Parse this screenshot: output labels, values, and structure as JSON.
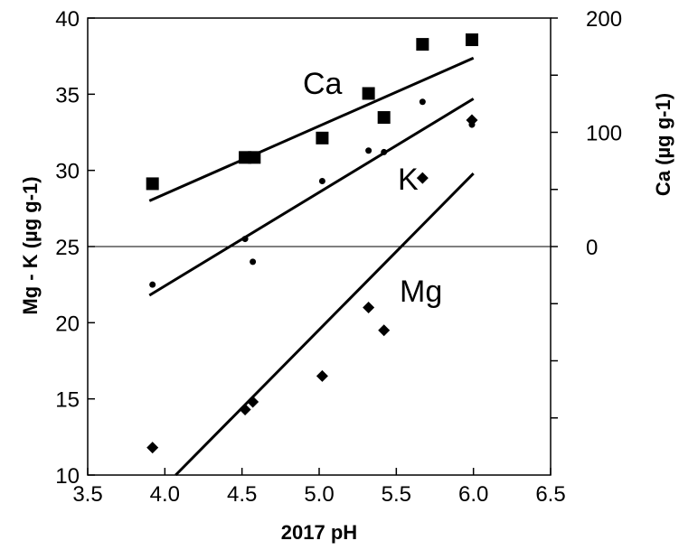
{
  "chart_data": {
    "type": "scatter",
    "title": "",
    "xlabel": "2017 pH",
    "ylabel_left": "Mg - K (µg g-1)",
    "ylabel_right": "Ca (µg g-1)",
    "xlim": [
      3.5,
      6.5
    ],
    "ylim_left": [
      10,
      40
    ],
    "ylim_right": [
      -200,
      200
    ],
    "x_ticks": [
      "3.5",
      "4.0",
      "4.5",
      "5.0",
      "5.5",
      "6.0",
      "6.5"
    ],
    "y_ticks_left": [
      "10",
      "15",
      "20",
      "25",
      "30",
      "35",
      "40"
    ],
    "y_ticks_right_labeled": [
      "0",
      "100",
      "200"
    ],
    "y_ticks_right_unlabeled": [
      -150,
      -100,
      -50,
      50,
      150
    ],
    "zero_line": {
      "axis": "right",
      "value": 0
    },
    "grid": false,
    "legend": "none",
    "series": [
      {
        "name": "Ca",
        "axis": "right",
        "marker": "square",
        "x": [
          3.92,
          4.52,
          4.58,
          5.02,
          5.32,
          5.42,
          5.67,
          5.99
        ],
        "y": [
          55,
          78,
          78,
          95,
          134,
          113,
          177,
          181
        ],
        "trend": {
          "x": [
            3.9,
            6.0
          ],
          "y": [
            40,
            165
          ]
        }
      },
      {
        "name": "K",
        "axis": "left",
        "marker": "circle",
        "x": [
          3.92,
          4.52,
          4.57,
          5.02,
          5.32,
          5.42,
          5.67,
          5.99
        ],
        "y": [
          22.5,
          25.5,
          24.0,
          29.3,
          31.3,
          31.2,
          34.5,
          33.0
        ],
        "trend": {
          "x": [
            3.9,
            6.0
          ],
          "y": [
            21.8,
            34.7
          ]
        }
      },
      {
        "name": "Mg",
        "axis": "left",
        "marker": "diamond",
        "x": [
          3.92,
          4.52,
          4.57,
          5.02,
          5.32,
          5.42,
          5.67,
          5.99
        ],
        "y": [
          11.8,
          14.3,
          14.8,
          16.5,
          21.0,
          19.5,
          29.5,
          33.3
        ],
        "trend": {
          "x": [
            4.07,
            6.0
          ],
          "y": [
            10.0,
            29.8
          ]
        }
      }
    ]
  }
}
